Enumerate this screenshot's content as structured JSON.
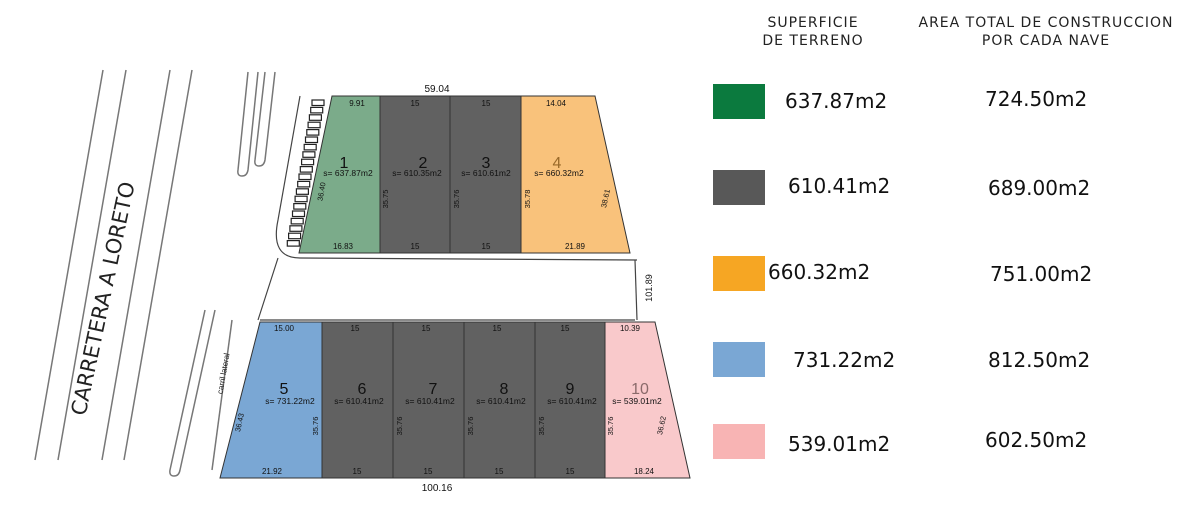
{
  "road_label": "CARRETERA A LORETO",
  "lateral_label": "carril lateral",
  "dims": {
    "top_total": "59.04",
    "bottom_total": "100.16",
    "right_side": "101.89"
  },
  "legend": {
    "col1_line1": "SUPERFICIE",
    "col1_line2": "DE TERRENO",
    "col2_line1": "AREA TOTAL DE CONSTRUCCION",
    "col2_line2": "POR CADA NAVE",
    "rows": [
      {
        "color": "#0b7a3e",
        "surface": "637.87m2",
        "construction": "724.50m2"
      },
      {
        "color": "#585858",
        "surface": "610.41m2",
        "construction": "689.00m2"
      },
      {
        "color": "#f6a623",
        "surface": "660.32m2",
        "construction": "751.00m2"
      },
      {
        "color": "#7aa7d4",
        "surface": "731.22m2",
        "construction": "812.50m2"
      },
      {
        "color": "#f8b4b4",
        "surface": "539.01m2",
        "construction": "602.50m2"
      }
    ]
  },
  "lots": [
    {
      "number": "1",
      "area": "s= 637.87m2",
      "top": "9.91",
      "bottom": "16.83",
      "side": "36.40",
      "color": "#7bab8a"
    },
    {
      "number": "2",
      "area": "s= 610.35m2",
      "top": "15",
      "bottom": "15",
      "side": "35.75",
      "color": "#616161"
    },
    {
      "number": "3",
      "area": "s= 610.61m2",
      "top": "15",
      "bottom": "15",
      "side": "35.76",
      "color": "#616161"
    },
    {
      "number": "4",
      "area": "s= 660.32m2",
      "top": "14.04",
      "bottom": "21.89",
      "side": "38.61",
      "left_side": "35.78",
      "color": "#f9c27b"
    },
    {
      "number": "5",
      "area": "s= 731.22m2",
      "top": "15.00",
      "bottom": "21.92",
      "side": "36.43",
      "color": "#7aa7d4"
    },
    {
      "number": "6",
      "area": "s= 610.41m2",
      "top": "15",
      "bottom": "15",
      "side": "35.76",
      "color": "#616161"
    },
    {
      "number": "7",
      "area": "s= 610.41m2",
      "top": "15",
      "bottom": "15",
      "side": "35.76",
      "color": "#616161"
    },
    {
      "number": "8",
      "area": "s= 610.41m2",
      "top": "15",
      "bottom": "15",
      "side": "35.76",
      "color": "#616161"
    },
    {
      "number": "9",
      "area": "s= 610.41m2",
      "top": "15",
      "bottom": "15",
      "side": "35.76",
      "color": "#616161"
    },
    {
      "number": "10",
      "area": "s= 539.01m2",
      "top": "10.39",
      "bottom": "18.24",
      "side": "36.62",
      "left_side": "35.76",
      "color": "#f9c9cb"
    }
  ]
}
